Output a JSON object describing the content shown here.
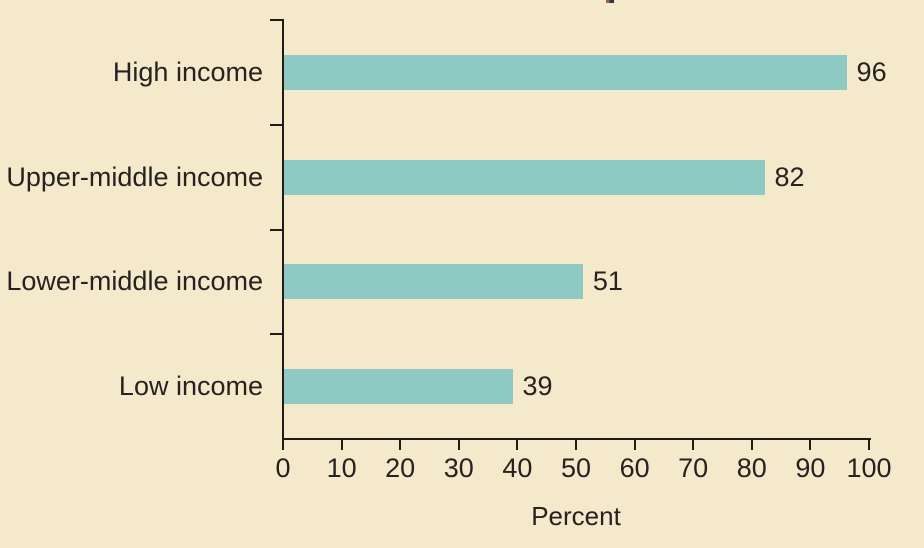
{
  "chart_data": {
    "type": "bar",
    "orientation": "horizontal",
    "categories": [
      "High income",
      "Upper-middle income",
      "Lower-middle income",
      "Low income"
    ],
    "values": [
      96,
      82,
      51,
      39
    ],
    "title": "",
    "xlabel": "Percent",
    "ylabel": "",
    "xlim": [
      0,
      100
    ],
    "xticks": [
      0,
      10,
      20,
      30,
      40,
      50,
      60,
      70,
      80,
      90,
      100
    ],
    "grid": false,
    "legend": false,
    "value_labels_shown": true
  },
  "theme": {
    "background_color": "#f5e9cc",
    "bar_color": "#8ecac3",
    "text_color": "#26221f",
    "axis_color": "#1f1b18",
    "artifact_colors": [
      "#a2642e",
      "#2b3450"
    ]
  }
}
